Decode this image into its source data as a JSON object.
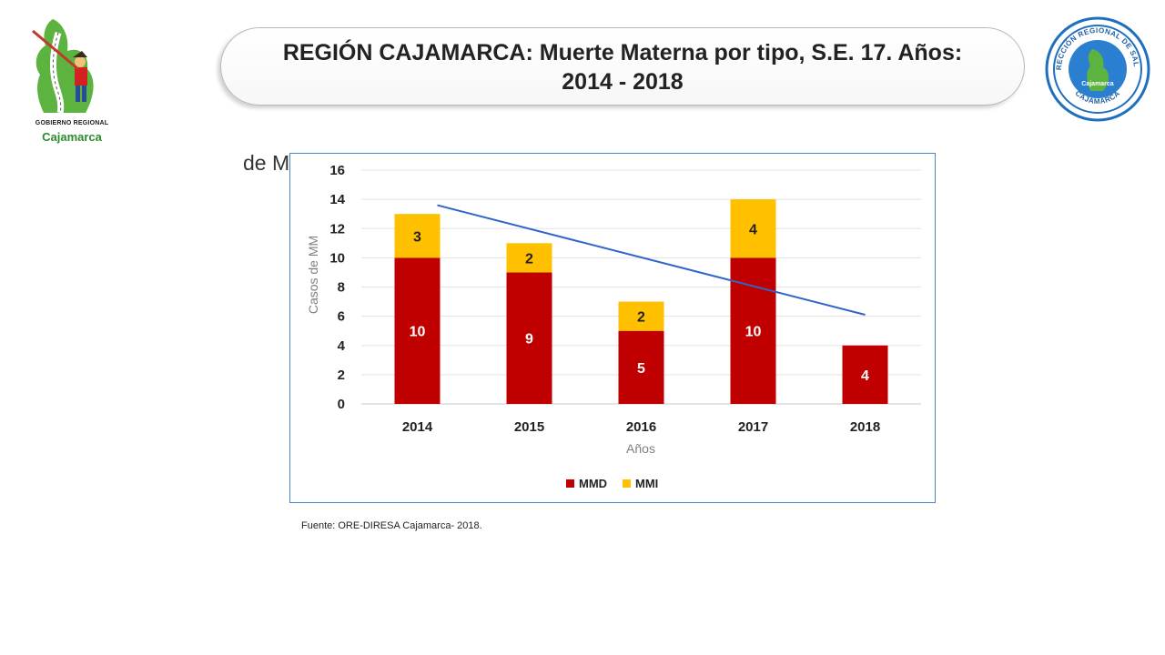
{
  "logos": {
    "left": {
      "line1": "GOBIERNO REGIONAL",
      "line2": "Cajamarca",
      "icon": "gobierno-regional-logo-icon"
    },
    "right": {
      "icon": "direccion-regional-salud-seal-icon",
      "seal_top_text": "DIRECCIÓN REGIONAL DE SALUD",
      "seal_inner_text": "Cajamarca",
      "seal_bottom_text": "CAJAMARCA"
    }
  },
  "header": {
    "title_line1": "REGIÓN CAJAMARCA: Muerte Materna por tipo, S.E. 17. Años:",
    "title_line2": "2014 - 2018"
  },
  "background_fragment": "de M",
  "chart_data": {
    "type": "bar",
    "stacked": true,
    "categories": [
      "2014",
      "2015",
      "2016",
      "2017",
      "2018"
    ],
    "series": [
      {
        "name": "MMD",
        "values": [
          10,
          9,
          5,
          10,
          4
        ],
        "color": "#c00000"
      },
      {
        "name": "MMI",
        "values": [
          3,
          2,
          2,
          4,
          0
        ],
        "color": "#ffc000"
      }
    ],
    "trendline": {
      "from": {
        "x": "2014",
        "y": 13.6
      },
      "to": {
        "x": "2018",
        "y": 6.1
      },
      "color": "#2f64c9"
    },
    "xlabel": "Años",
    "ylabel": "Casos de MM",
    "ylim": [
      0,
      16
    ],
    "yticks": [
      0,
      2,
      4,
      6,
      8,
      10,
      12,
      14,
      16
    ],
    "grid": true,
    "legend": "bottom"
  },
  "footer": {
    "source": "Fuente: ORE-DIRESA Cajamarca- 2018."
  }
}
